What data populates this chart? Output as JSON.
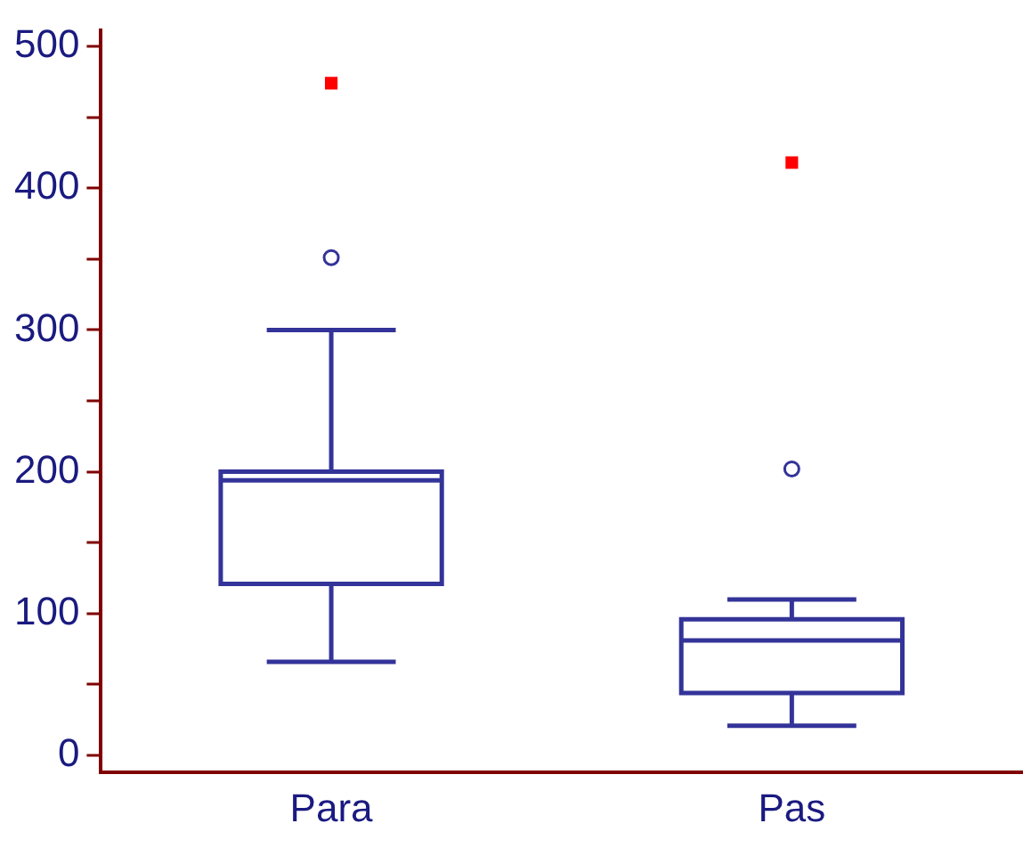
{
  "chart_data": {
    "type": "box",
    "categories": [
      "Para",
      "Pas"
    ],
    "series": [
      {
        "color": "#333399",
        "boxes": [
          {
            "low": 66,
            "q1": 121,
            "median": 194,
            "q3": 200,
            "high": 300,
            "outliers": [
              351
            ]
          },
          {
            "low": 21,
            "q1": 44,
            "median": 81,
            "q3": 96,
            "high": 110,
            "outliers": [
              202
            ]
          }
        ]
      },
      {
        "type": "scatter",
        "x": [
          "Para",
          "Pas"
        ],
        "values": [
          474,
          418
        ],
        "color": "#ff0000",
        "marker": "square"
      }
    ],
    "ylim": [
      -12,
      511
    ],
    "yticks": [
      0,
      {
        "value": 50,
        "label": null
      },
      100,
      {
        "value": 150,
        "label": null
      },
      200,
      {
        "value": 250,
        "label": null
      },
      300,
      {
        "value": 350,
        "label": null
      },
      400,
      {
        "value": 450,
        "label": null
      },
      500
    ],
    "grid": false,
    "legend": false
  }
}
